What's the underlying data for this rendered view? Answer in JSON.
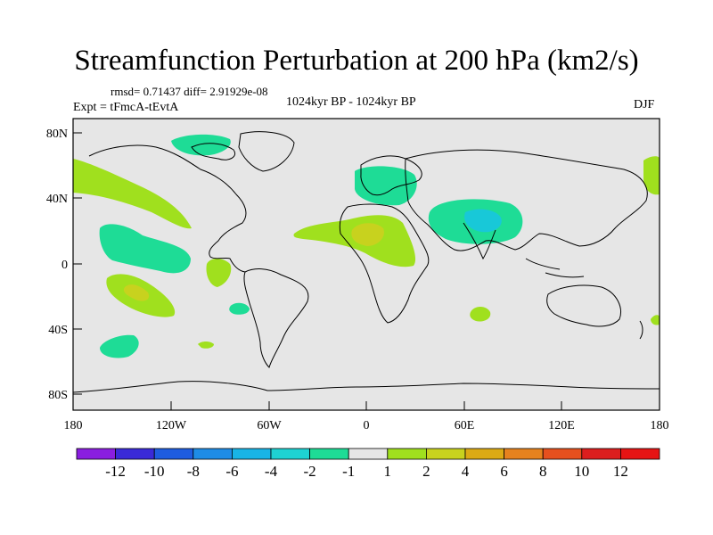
{
  "title": "Streamfunction Perturbation at 200 hPa (km2/s)",
  "stats": "rmsd= 0.71437 diff= 2.91929e-08",
  "expt": "Expt = tFmcA-tEvtA",
  "period": "1024kyr BP - 1024kyr BP",
  "season": "DJF",
  "lat_labels": [
    "80N",
    "40N",
    "0",
    "40S",
    "80S"
  ],
  "lon_labels": [
    "180",
    "120W",
    "60W",
    "0",
    "60E",
    "120E",
    "180"
  ],
  "colorbar": {
    "labels": [
      "-12",
      "-10",
      "-8",
      "-6",
      "-4",
      "-2",
      "-1",
      "1",
      "2",
      "4",
      "6",
      "8",
      "10",
      "12"
    ],
    "colors": [
      "#8a1ee0",
      "#3a2ad8",
      "#1e5ce0",
      "#1e8ce6",
      "#18b4e6",
      "#1ed2d2",
      "#1edc96",
      "#e6e6e6",
      "#a0e01e",
      "#c8d21e",
      "#dcaa14",
      "#e6821e",
      "#e6501e",
      "#dc1e1e",
      "#e61414"
    ]
  },
  "colors": {
    "background": "#e6e6e6",
    "coast": "#000000"
  }
}
